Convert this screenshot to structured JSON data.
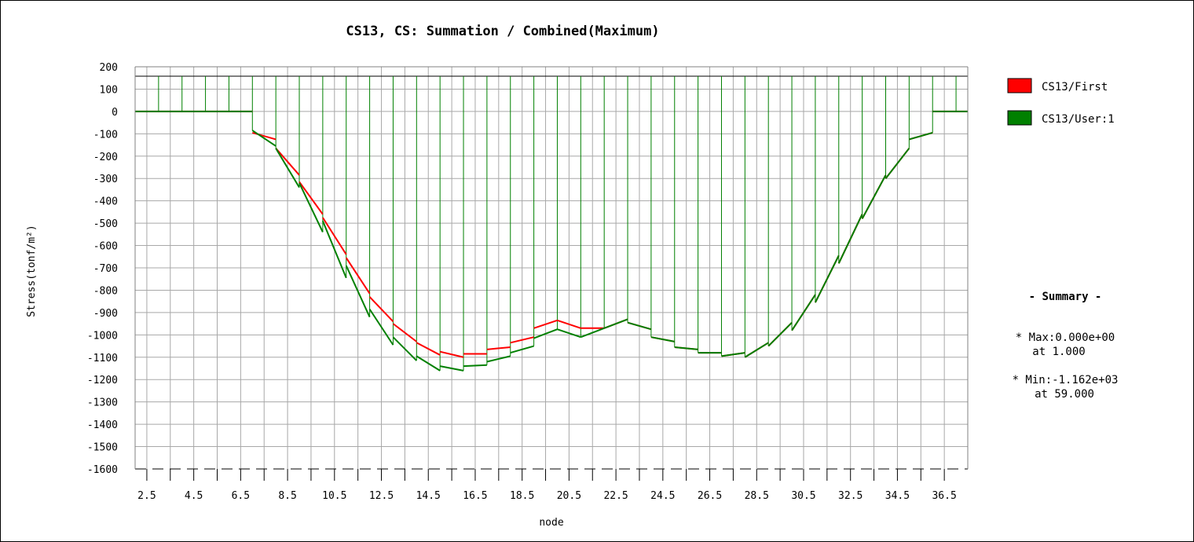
{
  "chart_data": {
    "type": "line",
    "title": "CS13, CS: Summation / Combined(Maximum)",
    "xlabel": "node",
    "ylabel": "Stress(tonf/m²)",
    "xlim": [
      2.0,
      37.5
    ],
    "ylim": [
      -1600,
      200
    ],
    "x_ticks": [
      2.5,
      4.5,
      6.5,
      8.5,
      10.5,
      12.5,
      14.5,
      16.5,
      18.5,
      20.5,
      22.5,
      24.5,
      26.5,
      28.5,
      30.5,
      32.5,
      34.5,
      36.5
    ],
    "x_tick_labels": [
      "2.5",
      "4.5",
      "6.5",
      "8.5",
      "10.5",
      "12.5",
      "14.5",
      "16.5",
      "18.5",
      "20.5",
      "22.5",
      "24.5",
      "26.5",
      "28.5",
      "30.5",
      "32.5",
      "34.5",
      "36.5"
    ],
    "y_ticks": [
      200,
      100,
      0,
      -100,
      -200,
      -300,
      -400,
      -500,
      -600,
      -700,
      -800,
      -900,
      -1000,
      -1100,
      -1200,
      -1300,
      -1400,
      -1500,
      -1600
    ],
    "y_tick_labels": [
      "200",
      "100",
      "0",
      "-100",
      "-200",
      "-300",
      "-400",
      "-500",
      "-600",
      "-700",
      "-800",
      "-900",
      "-1000",
      "-1100",
      "-1200",
      "-1300",
      "-1400",
      "-1500",
      "-1600"
    ],
    "grid": true,
    "legend_position": "right",
    "element_boundaries": [
      3.0,
      4.0,
      5.0,
      6.0,
      7.0,
      8.0,
      9.0,
      10.0,
      11.0,
      12.0,
      13.0,
      14.0,
      15.0,
      16.0,
      17.0,
      18.0,
      19.0,
      20.0,
      21.0,
      22.0,
      23.0,
      24.0,
      25.0,
      26.0,
      27.0,
      28.0,
      29.0,
      30.0,
      31.0,
      32.0,
      33.0,
      34.0,
      35.0,
      36.0,
      37.0
    ],
    "series": [
      {
        "name": "CS13/First",
        "color": "#ff0000",
        "segments": [
          [
            [
              2.0,
              0
            ],
            [
              7.0,
              0
            ]
          ],
          [
            [
              7.0,
              -95
            ],
            [
              8.0,
              -125
            ]
          ],
          [
            [
              8.0,
              -165
            ],
            [
              9.0,
              -285
            ]
          ],
          [
            [
              9.0,
              -315
            ],
            [
              10.0,
              -460
            ]
          ],
          [
            [
              10.0,
              -475
            ],
            [
              11.0,
              -640
            ]
          ],
          [
            [
              11.0,
              -655
            ],
            [
              12.0,
              -815
            ]
          ],
          [
            [
              12.0,
              -830
            ],
            [
              13.0,
              -940
            ]
          ],
          [
            [
              13.0,
              -950
            ],
            [
              14.0,
              -1030
            ]
          ],
          [
            [
              14.0,
              -1035
            ],
            [
              15.0,
              -1090
            ]
          ],
          [
            [
              15.0,
              -1075
            ],
            [
              16.0,
              -1100
            ]
          ],
          [
            [
              16.0,
              -1085
            ],
            [
              17.0,
              -1085
            ]
          ],
          [
            [
              17.0,
              -1065
            ],
            [
              18.0,
              -1055
            ]
          ],
          [
            [
              18.0,
              -1035
            ],
            [
              19.0,
              -1010
            ]
          ],
          [
            [
              19.0,
              -970
            ],
            [
              20.0,
              -935
            ]
          ],
          [
            [
              20.0,
              -935
            ],
            [
              21.0,
              -970
            ]
          ],
          [
            [
              21.0,
              -970
            ],
            [
              22.0,
              -970
            ]
          ],
          [
            [
              22.0,
              -970
            ],
            [
              23.0,
              -930
            ]
          ],
          [
            [
              23.0,
              -945
            ],
            [
              24.0,
              -975
            ]
          ],
          [
            [
              24.0,
              -1010
            ],
            [
              25.0,
              -1030
            ]
          ],
          [
            [
              25.0,
              -1055
            ],
            [
              26.0,
              -1065
            ]
          ],
          [
            [
              26.0,
              -1080
            ],
            [
              27.0,
              -1080
            ]
          ],
          [
            [
              27.0,
              -1095
            ],
            [
              28.0,
              -1080
            ]
          ],
          [
            [
              28.0,
              -1100
            ],
            [
              29.0,
              -1035
            ]
          ],
          [
            [
              29.0,
              -1050
            ],
            [
              30.0,
              -945
            ]
          ],
          [
            [
              30.0,
              -980
            ],
            [
              31.0,
              -820
            ]
          ],
          [
            [
              31.0,
              -855
            ],
            [
              32.0,
              -645
            ]
          ],
          [
            [
              32.0,
              -680
            ],
            [
              33.0,
              -460
            ]
          ],
          [
            [
              33.0,
              -480
            ],
            [
              34.0,
              -285
            ]
          ],
          [
            [
              34.0,
              -300
            ],
            [
              35.0,
              -165
            ]
          ],
          [
            [
              35.0,
              -125
            ],
            [
              36.0,
              -95
            ]
          ],
          [
            [
              36.0,
              0
            ],
            [
              37.5,
              0
            ]
          ]
        ]
      },
      {
        "name": "CS13/User:1",
        "color": "#008000",
        "segments": [
          [
            [
              2.0,
              0
            ],
            [
              7.0,
              0
            ]
          ],
          [
            [
              7.0,
              -85
            ],
            [
              8.0,
              -155
            ]
          ],
          [
            [
              8.0,
              -165
            ],
            [
              9.0,
              -340
            ]
          ],
          [
            [
              9.0,
              -320
            ],
            [
              10.0,
              -540
            ]
          ],
          [
            [
              10.0,
              -490
            ],
            [
              11.0,
              -745
            ]
          ],
          [
            [
              11.0,
              -690
            ],
            [
              12.0,
              -920
            ]
          ],
          [
            [
              12.0,
              -885
            ],
            [
              13.0,
              -1045
            ]
          ],
          [
            [
              13.0,
              -1010
            ],
            [
              14.0,
              -1115
            ]
          ],
          [
            [
              14.0,
              -1095
            ],
            [
              15.0,
              -1160
            ]
          ],
          [
            [
              15.0,
              -1140
            ],
            [
              16.0,
              -1160
            ]
          ],
          [
            [
              16.0,
              -1140
            ],
            [
              17.0,
              -1135
            ]
          ],
          [
            [
              17.0,
              -1120
            ],
            [
              18.0,
              -1095
            ]
          ],
          [
            [
              18.0,
              -1080
            ],
            [
              19.0,
              -1050
            ]
          ],
          [
            [
              19.0,
              -1015
            ],
            [
              20.0,
              -975
            ]
          ],
          [
            [
              20.0,
              -975
            ],
            [
              21.0,
              -1010
            ]
          ],
          [
            [
              21.0,
              -1010
            ],
            [
              22.0,
              -970
            ]
          ],
          [
            [
              22.0,
              -970
            ],
            [
              23.0,
              -930
            ]
          ],
          [
            [
              23.0,
              -945
            ],
            [
              24.0,
              -975
            ]
          ],
          [
            [
              24.0,
              -1010
            ],
            [
              25.0,
              -1030
            ]
          ],
          [
            [
              25.0,
              -1055
            ],
            [
              26.0,
              -1065
            ]
          ],
          [
            [
              26.0,
              -1080
            ],
            [
              27.0,
              -1080
            ]
          ],
          [
            [
              27.0,
              -1095
            ],
            [
              28.0,
              -1080
            ]
          ],
          [
            [
              28.0,
              -1100
            ],
            [
              29.0,
              -1035
            ]
          ],
          [
            [
              29.0,
              -1050
            ],
            [
              30.0,
              -945
            ]
          ],
          [
            [
              30.0,
              -980
            ],
            [
              31.0,
              -820
            ]
          ],
          [
            [
              31.0,
              -855
            ],
            [
              32.0,
              -645
            ]
          ],
          [
            [
              32.0,
              -680
            ],
            [
              33.0,
              -460
            ]
          ],
          [
            [
              33.0,
              -480
            ],
            [
              34.0,
              -285
            ]
          ],
          [
            [
              34.0,
              -300
            ],
            [
              35.0,
              -165
            ]
          ],
          [
            [
              35.0,
              -125
            ],
            [
              36.0,
              -95
            ]
          ],
          [
            [
              36.0,
              0
            ],
            [
              37.5,
              0
            ]
          ]
        ]
      }
    ],
    "summary": {
      "heading": "- Summary -",
      "max_line": "* Max:0.000e+00",
      "max_at": "at  1.000",
      "min_line": "* Min:-1.162e+03",
      "min_at": "at 59.000"
    }
  }
}
